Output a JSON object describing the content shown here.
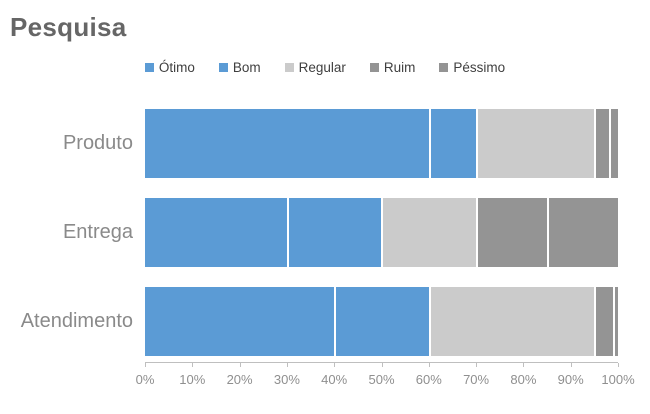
{
  "chart_data": {
    "type": "bar",
    "orientation": "horizontal",
    "stacked": true,
    "title": "Pesquisa",
    "categories": [
      "Produto",
      "Entrega",
      "Atendimento"
    ],
    "series": [
      {
        "name": "Ótimo",
        "color": "#5B9BD5",
        "values": [
          60,
          30,
          40
        ]
      },
      {
        "name": "Bom",
        "color": "#5B9BD5",
        "values": [
          10,
          20,
          20
        ]
      },
      {
        "name": "Regular",
        "color": "#CBCBCB",
        "values": [
          25,
          20,
          35
        ]
      },
      {
        "name": "Ruim",
        "color": "#949494",
        "values": [
          3,
          15,
          4
        ]
      },
      {
        "name": "Péssimo",
        "color": "#949494",
        "values": [
          2,
          15,
          1
        ]
      }
    ],
    "xlabel": "",
    "ylabel": "",
    "x_axis": {
      "min": 0,
      "max": 100,
      "tick_labels": [
        "0%",
        "10%",
        "20%",
        "30%",
        "40%",
        "50%",
        "60%",
        "70%",
        "80%",
        "90%",
        "100%"
      ]
    },
    "legend_position": "top",
    "grid": false
  },
  "colors": {
    "blue": "#5B9BD5",
    "light_gray": "#CBCBCB",
    "dark_gray": "#949494",
    "axis_line": "#BFBFBF",
    "title_text": "#666666",
    "category_text": "#8A8A8A",
    "tick_text": "#8F8F8F",
    "legend_text": "#3F3F3F",
    "background": "#FFFFFF"
  }
}
